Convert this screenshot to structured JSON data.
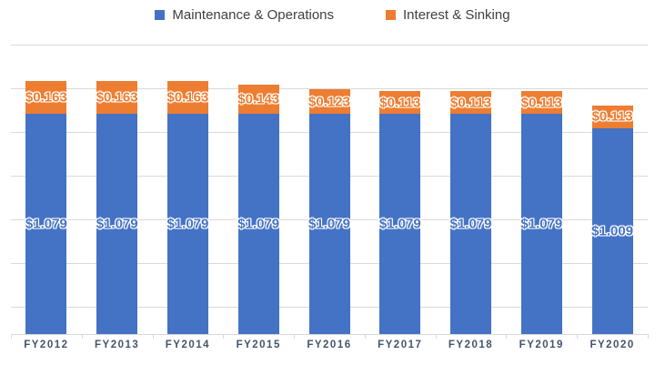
{
  "chart_data": {
    "type": "bar",
    "stacked": true,
    "title": "",
    "categories": [
      "FY2012",
      "FY2013",
      "FY2014",
      "FY2015",
      "FY2016",
      "FY2017",
      "FY2018",
      "FY2019",
      "FY2020"
    ],
    "series": [
      {
        "name": "Maintenance & Operations",
        "color": "#4472C4",
        "values": [
          1.079,
          1.079,
          1.079,
          1.079,
          1.079,
          1.079,
          1.079,
          1.079,
          1.009
        ],
        "data_labels": [
          "$1.079",
          "$1.079",
          "$1.079",
          "$1.079",
          "$1.079",
          "$1.079",
          "$1.079",
          "$1.079",
          "$1.009"
        ]
      },
      {
        "name": "Interest & Sinking",
        "color": "#ED7D31",
        "values": [
          0.163,
          0.163,
          0.163,
          0.143,
          0.123,
          0.113,
          0.113,
          0.113,
          0.113
        ],
        "data_labels": [
          "$0.163",
          "$0.163",
          "$0.163",
          "$0.143",
          "$0.123",
          "$0.113",
          "$0.113",
          "$0.113",
          "$0.113"
        ]
      }
    ],
    "ylim": [
      0,
      1.4
    ],
    "gridlines": "horizontal",
    "gridline_color": "#D9D9D9",
    "axis_label_color": "#44546A",
    "legend_position": "top",
    "legend_text_color": "#404040",
    "data_label_outline_color": "#FFFFFF"
  }
}
